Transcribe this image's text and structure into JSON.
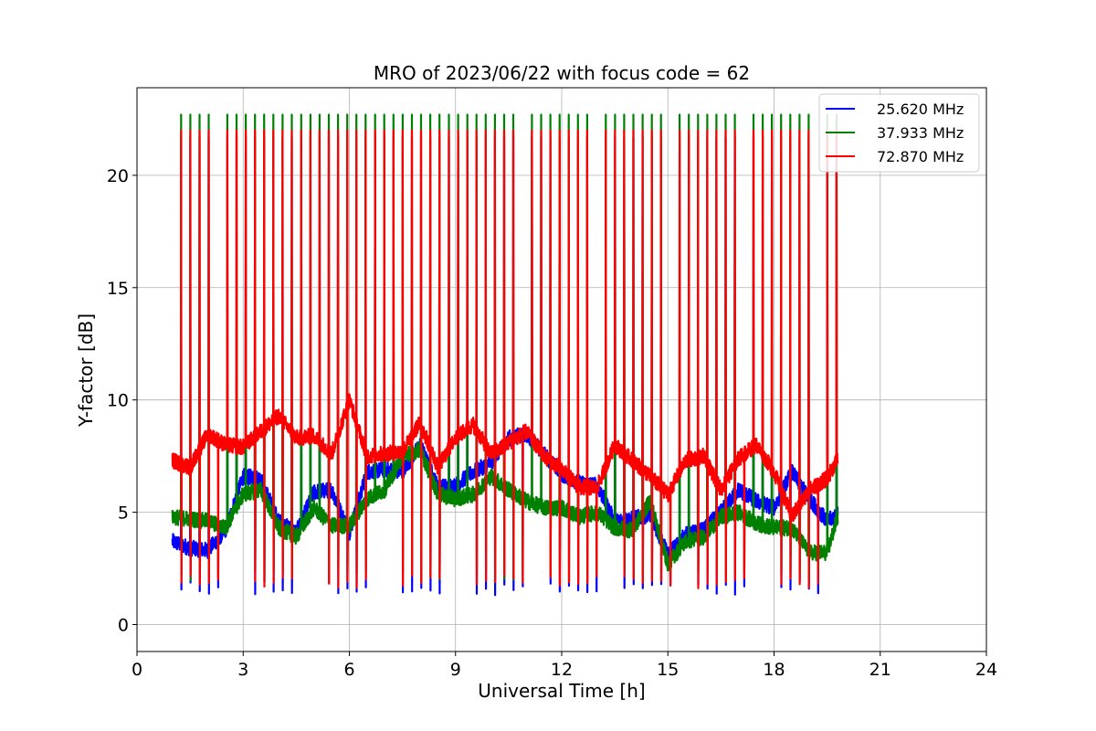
{
  "chart_data": {
    "type": "line",
    "title": "MRO of 2023/06/22 with focus code = 62",
    "xlabel": "Universal Time [h]",
    "ylabel": "Y-factor [dB]",
    "xlim": [
      0,
      24
    ],
    "ylim": [
      -1.2,
      23.9
    ],
    "xticks": [
      0,
      3,
      6,
      9,
      12,
      15,
      18,
      21,
      24
    ],
    "xtick_labels": [
      "0",
      "3",
      "6",
      "9",
      "12",
      "15",
      "18",
      "21",
      "24"
    ],
    "yticks": [
      0,
      5,
      10,
      15,
      20
    ],
    "ytick_labels": [
      "0",
      "5",
      "10",
      "15",
      "20"
    ],
    "grid": true,
    "legend_position": "top-right",
    "calibration": {
      "x_start": 1.0,
      "x_end": 19.8,
      "period_h": 0.2608,
      "peak_values": [
        21.7,
        22.7,
        22.0
      ],
      "trough_values": [
        1.6,
        2.2,
        1.9
      ]
    },
    "series": [
      {
        "name": "25.620 MHz",
        "color": "#0000ff",
        "x": [
          1.0,
          1.5,
          2.0,
          2.5,
          3.0,
          3.5,
          4.0,
          4.5,
          5.0,
          5.5,
          6.0,
          6.5,
          7.0,
          7.5,
          8.0,
          8.5,
          9.0,
          9.5,
          10.0,
          10.5,
          11.0,
          11.5,
          12.0,
          12.5,
          13.0,
          13.5,
          14.0,
          14.5,
          15.0,
          15.5,
          16.0,
          16.5,
          17.0,
          17.5,
          18.0,
          18.5,
          19.0,
          19.5,
          19.8
        ],
        "y": [
          3.7,
          3.4,
          3.3,
          4.2,
          6.6,
          6.5,
          4.6,
          4.1,
          5.9,
          6.0,
          4.1,
          6.8,
          6.9,
          6.8,
          8.0,
          6.1,
          6.2,
          6.8,
          7.2,
          8.3,
          8.5,
          7.6,
          6.7,
          6.3,
          6.2,
          4.6,
          4.7,
          4.9,
          3.1,
          4.0,
          4.2,
          5.0,
          6.0,
          5.5,
          5.2,
          6.8,
          5.6,
          4.6,
          4.9
        ]
      },
      {
        "name": "37.933 MHz",
        "color": "#008000",
        "x": [
          1.0,
          1.5,
          2.0,
          2.5,
          3.0,
          3.5,
          4.0,
          4.5,
          5.0,
          5.5,
          6.0,
          6.5,
          7.0,
          7.5,
          8.0,
          8.5,
          9.0,
          9.5,
          10.0,
          10.5,
          11.0,
          11.5,
          12.0,
          12.5,
          13.0,
          13.5,
          14.0,
          14.5,
          15.0,
          15.5,
          16.0,
          16.5,
          17.0,
          17.5,
          18.0,
          18.5,
          19.0,
          19.5,
          19.8
        ],
        "y": [
          4.8,
          4.7,
          4.6,
          4.3,
          5.8,
          6.0,
          4.3,
          3.9,
          5.2,
          4.4,
          4.4,
          5.6,
          6.0,
          7.5,
          7.8,
          5.8,
          5.6,
          5.8,
          6.6,
          6.0,
          5.5,
          5.2,
          5.2,
          4.8,
          5.0,
          4.3,
          4.2,
          5.5,
          2.7,
          3.7,
          3.9,
          4.8,
          5.0,
          4.5,
          4.3,
          4.3,
          3.2,
          3.2,
          4.8
        ]
      },
      {
        "name": "72.870 MHz",
        "color": "#ff0000",
        "x": [
          1.0,
          1.5,
          2.0,
          2.5,
          3.0,
          3.5,
          4.0,
          4.5,
          5.0,
          5.5,
          6.0,
          6.5,
          7.0,
          7.5,
          8.0,
          8.5,
          9.0,
          9.5,
          10.0,
          10.5,
          11.0,
          11.5,
          12.0,
          12.5,
          13.0,
          13.5,
          14.0,
          14.5,
          15.0,
          15.5,
          16.0,
          16.5,
          17.0,
          17.5,
          18.0,
          18.5,
          19.0,
          19.5,
          19.8
        ],
        "y": [
          7.3,
          7.0,
          8.5,
          8.0,
          7.9,
          8.6,
          9.3,
          8.3,
          8.4,
          7.6,
          10.0,
          7.5,
          7.6,
          7.7,
          9.0,
          7.0,
          8.3,
          8.9,
          7.6,
          8.1,
          8.6,
          7.5,
          6.9,
          6.1,
          6.1,
          8.0,
          7.3,
          6.6,
          5.8,
          7.3,
          7.5,
          6.0,
          7.4,
          8.0,
          6.8,
          4.8,
          6.0,
          6.5,
          7.4
        ]
      }
    ]
  }
}
